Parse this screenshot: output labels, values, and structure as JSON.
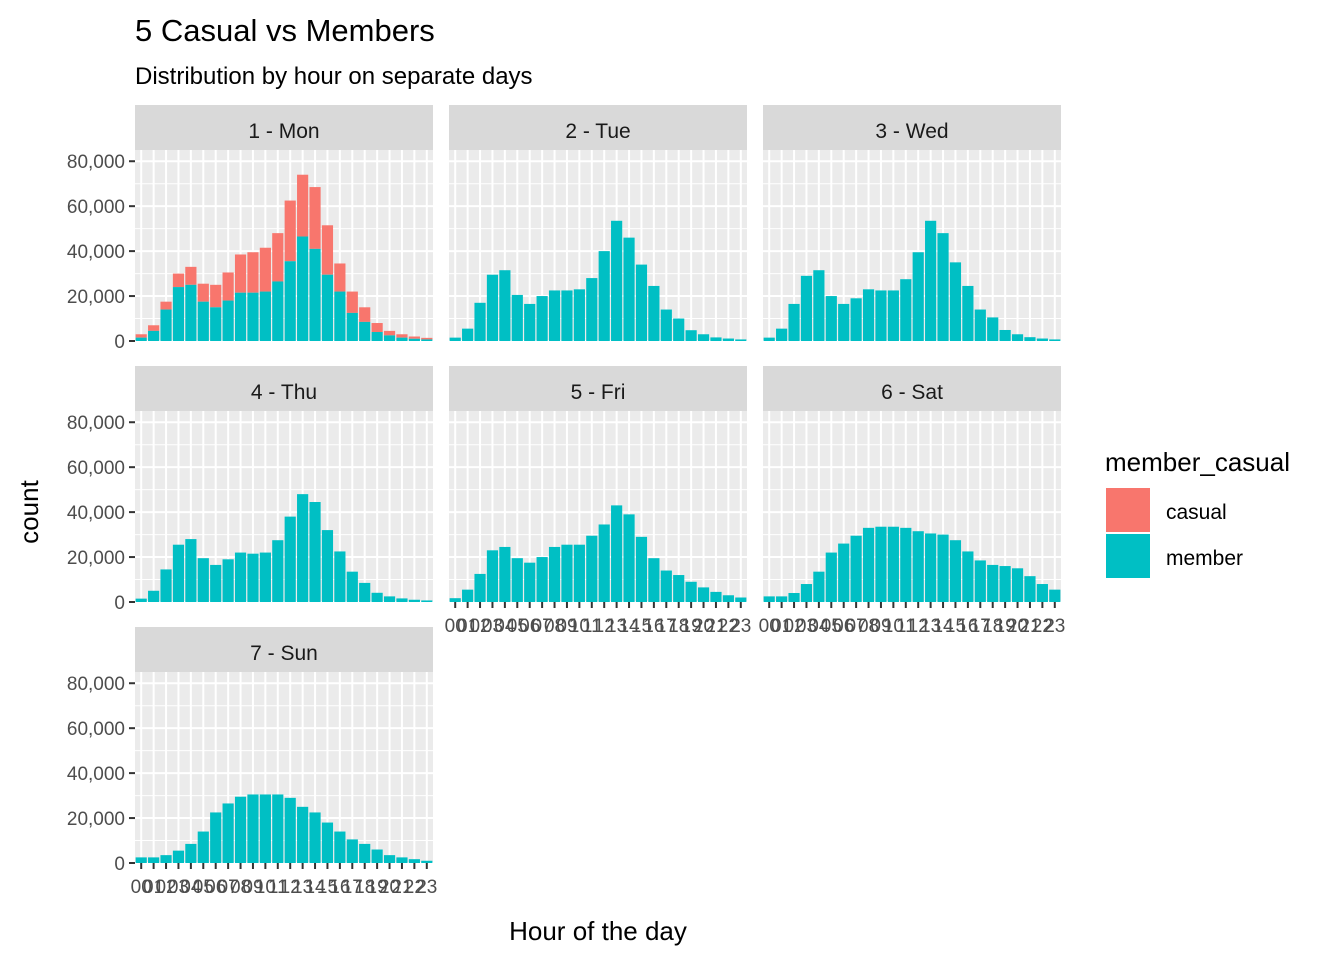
{
  "chart_data": {
    "type": "bar",
    "stacked": true,
    "title": "5 Casual vs Members",
    "subtitle": "Distribution by hour on separate days",
    "xlabel": "Hour of the day",
    "ylabel": "count",
    "ylim": [
      0,
      85000
    ],
    "yticks": [
      "0",
      "20,000",
      "40,000",
      "60,000",
      "80,000"
    ],
    "ytick_values": [
      0,
      20000,
      40000,
      60000,
      80000
    ],
    "grid": true,
    "legend": {
      "title": "member_casual",
      "position": "right",
      "entries": [
        {
          "label": "casual",
          "color": "#F8766D"
        },
        {
          "label": "member",
          "color": "#00BFC4"
        }
      ]
    },
    "categories": [
      "00",
      "01",
      "02",
      "03",
      "04",
      "05",
      "06",
      "07",
      "08",
      "09",
      "10",
      "11",
      "12",
      "13",
      "14",
      "15",
      "16",
      "17",
      "18",
      "19",
      "20",
      "21",
      "22",
      "23"
    ],
    "panels": [
      {
        "label": "1 - Mon",
        "member": [
          1500,
          4500,
          14000,
          24000,
          25000,
          17500,
          15000,
          18000,
          21500,
          21500,
          22000,
          26500,
          35500,
          46500,
          41000,
          29500,
          22000,
          12500,
          8500,
          4000,
          2500,
          1500,
          1000,
          700
        ],
        "casual": [
          1500,
          2500,
          3500,
          6000,
          8000,
          8000,
          10000,
          12500,
          17000,
          18000,
          19500,
          21500,
          27000,
          27500,
          27500,
          22000,
          12500,
          9500,
          6500,
          4000,
          2000,
          1500,
          1000,
          700
        ]
      },
      {
        "label": "2 - Tue",
        "member": [
          1500,
          5500,
          17000,
          29500,
          31500,
          20500,
          16500,
          20000,
          22500,
          22500,
          23000,
          28000,
          40000,
          53500,
          46000,
          34000,
          24500,
          14000,
          10000,
          4800,
          3000,
          1600,
          1100,
          700
        ]
      },
      {
        "label": "3 - Wed",
        "member": [
          1500,
          5500,
          16500,
          29000,
          31500,
          20000,
          16500,
          19000,
          23000,
          22500,
          22500,
          27500,
          39500,
          53500,
          48000,
          35000,
          24500,
          14000,
          10500,
          4900,
          3000,
          1700,
          1100,
          700
        ]
      },
      {
        "label": "4 - Thu",
        "member": [
          1500,
          5000,
          14500,
          25500,
          28000,
          19500,
          16500,
          19000,
          22000,
          21500,
          22000,
          27500,
          38000,
          48000,
          44500,
          32000,
          22500,
          13500,
          8500,
          4100,
          2500,
          1600,
          1000,
          700
        ]
      },
      {
        "label": "5 - Fri",
        "member": [
          1700,
          5500,
          12500,
          23000,
          24500,
          19500,
          17500,
          20000,
          24500,
          25500,
          25500,
          29500,
          34500,
          43000,
          39000,
          29000,
          19500,
          14000,
          12000,
          9000,
          6500,
          4500,
          3000,
          2000
        ]
      },
      {
        "label": "6 - Sat",
        "member": [
          2500,
          2500,
          4000,
          8000,
          13500,
          22000,
          26000,
          29500,
          33000,
          33500,
          33500,
          33000,
          31500,
          30500,
          30000,
          27500,
          22500,
          18500,
          16500,
          16000,
          15000,
          11500,
          8000,
          5500
        ]
      },
      {
        "label": "7 - Sun",
        "member": [
          2500,
          2500,
          3500,
          5500,
          8500,
          14000,
          22500,
          26500,
          29500,
          30500,
          30500,
          30500,
          29000,
          25000,
          22500,
          18000,
          14000,
          10500,
          8500,
          6000,
          3500,
          2500,
          1700,
          1000
        ]
      }
    ]
  }
}
